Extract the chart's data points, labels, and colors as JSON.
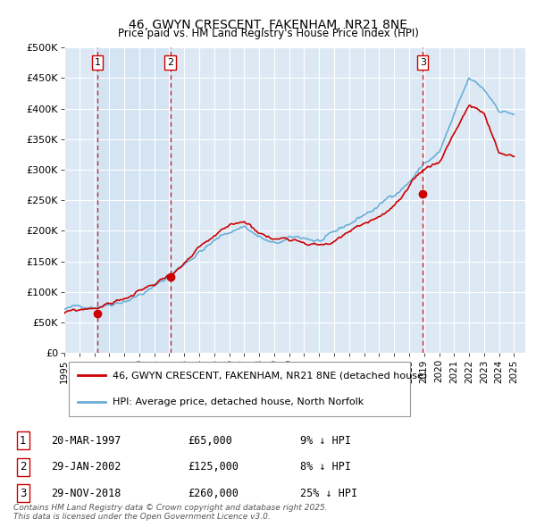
{
  "title": "46, GWYN CRESCENT, FAKENHAM, NR21 8NE",
  "subtitle": "Price paid vs. HM Land Registry's House Price Index (HPI)",
  "background_color": "#dce9f5",
  "plot_bg_color": "#dce9f5",
  "ylim": [
    0,
    500000
  ],
  "yticks": [
    0,
    50000,
    100000,
    150000,
    200000,
    250000,
    300000,
    350000,
    400000,
    450000,
    500000
  ],
  "ytick_labels": [
    "£0",
    "£50K",
    "£100K",
    "£150K",
    "£200K",
    "£250K",
    "£300K",
    "£350K",
    "£400K",
    "£450K",
    "£500K"
  ],
  "xlim_start": 1995.0,
  "xlim_end": 2025.75,
  "xticks": [
    1995,
    1996,
    1997,
    1998,
    1999,
    2000,
    2001,
    2002,
    2003,
    2004,
    2005,
    2006,
    2007,
    2008,
    2009,
    2010,
    2011,
    2012,
    2013,
    2014,
    2015,
    2016,
    2017,
    2018,
    2019,
    2020,
    2021,
    2022,
    2023,
    2024,
    2025
  ],
  "sale_dates": [
    1997.21,
    2002.08,
    2018.91
  ],
  "sale_prices": [
    65000,
    125000,
    260000
  ],
  "sale_labels": [
    "1",
    "2",
    "3"
  ],
  "legend_line1": "46, GWYN CRESCENT, FAKENHAM, NR21 8NE (detached house)",
  "legend_line2": "HPI: Average price, detached house, North Norfolk",
  "transaction_rows": [
    {
      "num": "1",
      "date": "20-MAR-1997",
      "price": "£65,000",
      "change": "9% ↓ HPI"
    },
    {
      "num": "2",
      "date": "29-JAN-2002",
      "price": "£125,000",
      "change": "8% ↓ HPI"
    },
    {
      "num": "3",
      "date": "29-NOV-2018",
      "price": "£260,000",
      "change": "25% ↓ HPI"
    }
  ],
  "footnote": "Contains HM Land Registry data © Crown copyright and database right 2025.\nThis data is licensed under the Open Government Licence v3.0.",
  "hpi_color": "#6baed6",
  "sale_line_color": "#cc0000",
  "dot_color": "#cc0000",
  "shade_color": "#d6e8f5"
}
